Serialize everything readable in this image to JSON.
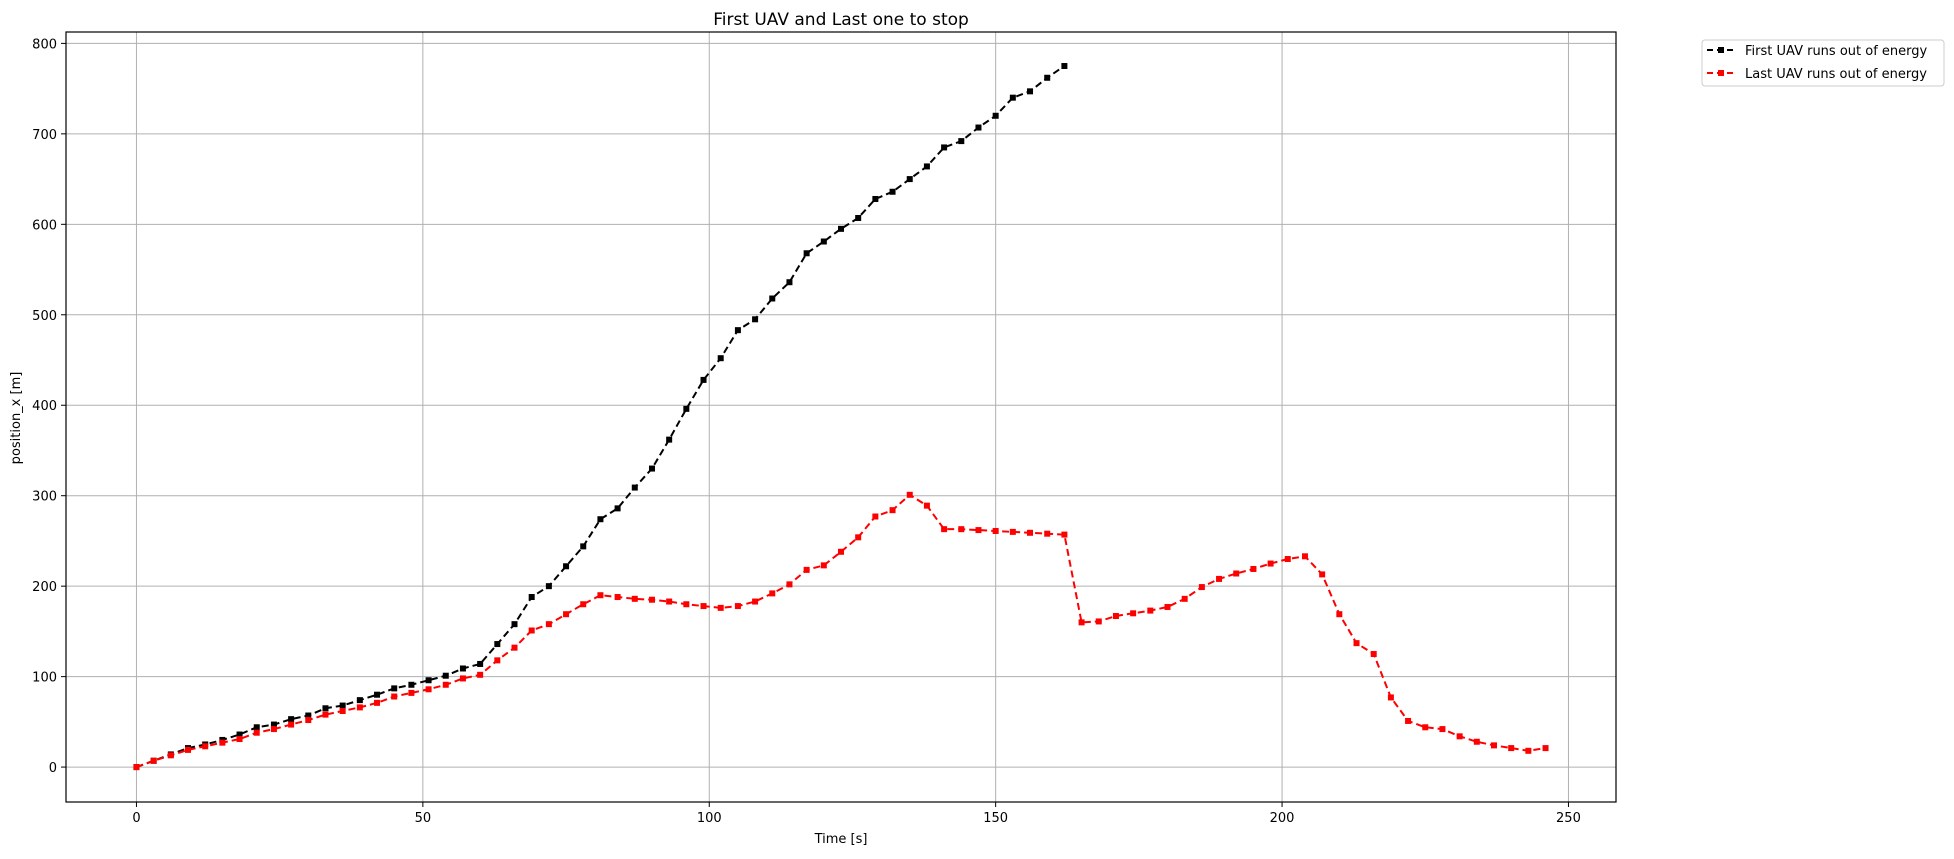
{
  "chart_data": {
    "type": "line",
    "title": "First UAV and Last one to stop",
    "xlabel": "Time [s]",
    "ylabel": "position_x [m]",
    "xlim": [
      -12.3,
      258.3
    ],
    "ylim": [
      -38.6,
      812.6
    ],
    "xticks": [
      0,
      50,
      100,
      150,
      200,
      250
    ],
    "yticks": [
      0,
      100,
      200,
      300,
      400,
      500,
      600,
      700,
      800
    ],
    "grid": true,
    "legend_position": "outside top-right",
    "series": [
      {
        "name": "First UAV runs out of energy",
        "color": "#000000",
        "line_style": "dashed",
        "marker": "square",
        "x": [
          0,
          3,
          6,
          9,
          12,
          15,
          18,
          21,
          24,
          27,
          30,
          33,
          36,
          39,
          42,
          45,
          48,
          51,
          54,
          57,
          60,
          63,
          66,
          69,
          72,
          75,
          78,
          81,
          84,
          87,
          90,
          93,
          96,
          99,
          102,
          105,
          108,
          111,
          114,
          117,
          120,
          123,
          126,
          129,
          132,
          135,
          138,
          141,
          144,
          147,
          150,
          153,
          156,
          159,
          162
        ],
        "y": [
          0,
          7,
          14,
          21,
          25,
          30,
          36,
          44,
          47,
          53,
          57,
          65,
          68,
          74,
          80,
          87,
          91,
          96,
          101,
          109,
          114,
          136,
          158,
          188,
          200,
          222,
          244,
          274,
          286,
          309,
          330,
          362,
          396,
          428,
          452,
          483,
          495,
          518,
          536,
          568,
          581,
          595,
          607,
          628,
          636,
          650,
          664,
          685,
          692,
          707,
          720,
          740,
          747,
          762,
          775
        ]
      },
      {
        "name": "Last UAV runs out of energy",
        "color": "#ff0000",
        "line_style": "dashed",
        "marker": "square",
        "x": [
          0,
          3,
          6,
          9,
          12,
          15,
          18,
          21,
          24,
          27,
          30,
          33,
          36,
          39,
          42,
          45,
          48,
          51,
          54,
          57,
          60,
          63,
          66,
          69,
          72,
          75,
          78,
          81,
          84,
          87,
          90,
          93,
          96,
          99,
          102,
          105,
          108,
          111,
          114,
          117,
          120,
          123,
          126,
          129,
          132,
          135,
          138,
          141,
          144,
          147,
          150,
          153,
          156,
          159,
          162,
          165,
          168,
          171,
          174,
          177,
          180,
          183,
          186,
          189,
          192,
          195,
          198,
          201,
          204,
          207,
          210,
          213,
          216,
          219,
          222,
          225,
          228,
          231,
          234,
          237,
          240,
          243,
          246
        ],
        "y": [
          0,
          7,
          13,
          19,
          23,
          27,
          31,
          38,
          42,
          47,
          52,
          58,
          62,
          66,
          71,
          78,
          82,
          86,
          91,
          98,
          102,
          118,
          132,
          151,
          158,
          169,
          180,
          190,
          188,
          186,
          185,
          183,
          180,
          178,
          176,
          178,
          183,
          192,
          202,
          218,
          223,
          238,
          254,
          277,
          284,
          301,
          289,
          263,
          263,
          262,
          261,
          260,
          259,
          258,
          257,
          160,
          161,
          167,
          170,
          173,
          177,
          186,
          199,
          208,
          214,
          219,
          225,
          230,
          233,
          213,
          169,
          137,
          125,
          77,
          51,
          44,
          42,
          34,
          28,
          24,
          21,
          18,
          21
        ]
      }
    ]
  }
}
